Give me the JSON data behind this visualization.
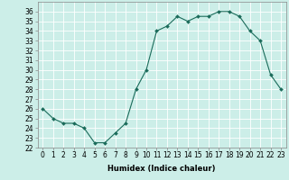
{
  "x": [
    0,
    1,
    2,
    3,
    4,
    5,
    6,
    7,
    8,
    9,
    10,
    11,
    12,
    13,
    14,
    15,
    16,
    17,
    18,
    19,
    20,
    21,
    22,
    23
  ],
  "y": [
    26.0,
    25.0,
    24.5,
    24.5,
    24.0,
    22.5,
    22.5,
    23.5,
    24.5,
    28.0,
    30.0,
    34.0,
    34.5,
    35.5,
    35.0,
    35.5,
    35.5,
    36.0,
    36.0,
    35.5,
    34.0,
    33.0,
    29.5,
    28.0
  ],
  "line_color": "#1a6b5a",
  "marker": "D",
  "marker_size": 2,
  "bg_color": "#cceee8",
  "grid_color": "#ffffff",
  "xlabel": "Humidex (Indice chaleur)",
  "xlabel_fontsize": 6,
  "tick_fontsize": 5.5,
  "ylim": [
    22,
    37
  ],
  "xlim": [
    -0.5,
    23.5
  ],
  "yticks": [
    22,
    23,
    24,
    25,
    26,
    27,
    28,
    29,
    30,
    31,
    32,
    33,
    34,
    35,
    36
  ],
  "xticks": [
    0,
    1,
    2,
    3,
    4,
    5,
    6,
    7,
    8,
    9,
    10,
    11,
    12,
    13,
    14,
    15,
    16,
    17,
    18,
    19,
    20,
    21,
    22,
    23
  ]
}
